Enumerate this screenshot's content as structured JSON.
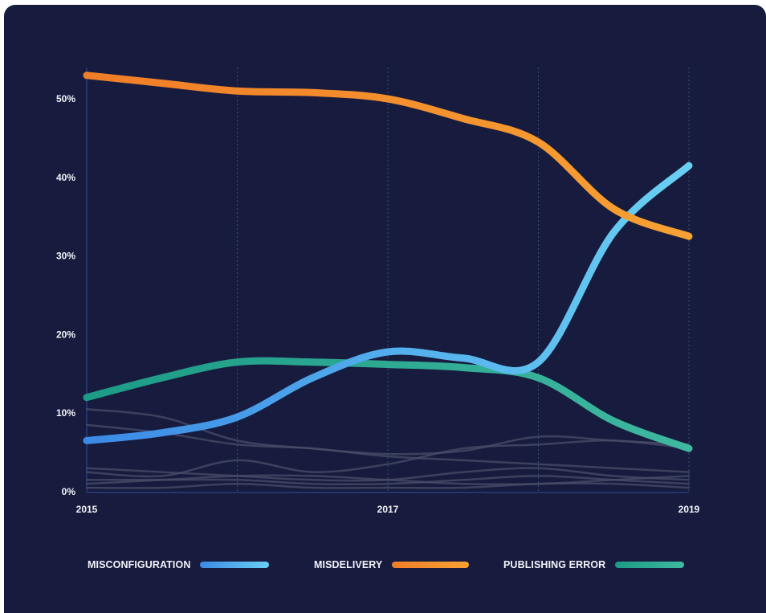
{
  "chart_data": {
    "type": "line",
    "title": "",
    "xlabel": "",
    "ylabel": "",
    "x": [
      2015,
      2015.5,
      2016,
      2016.5,
      2017,
      2017.5,
      2018,
      2018.5,
      2019
    ],
    "xlim": [
      2015,
      2019
    ],
    "ylim": [
      0,
      54
    ],
    "x_ticks": [
      "2015",
      "2017",
      "2019"
    ],
    "y_ticks": [
      "0%",
      "10%",
      "20%",
      "30%",
      "40%",
      "50%"
    ],
    "y_tick_values": [
      0,
      10,
      20,
      30,
      40,
      50
    ],
    "grid": "vertical dotted",
    "legend_position": "bottom",
    "series": [
      {
        "name": "MISCONFIGURATION",
        "values": [
          6.5,
          7.5,
          9.5,
          14.5,
          17.8,
          17,
          16.5,
          33,
          41.5
        ],
        "color_start": "#3b8ae6",
        "color_end": "#6ad0f2"
      },
      {
        "name": "MISDELIVERY",
        "values": [
          53,
          52,
          51,
          50.8,
          50,
          47.5,
          44.5,
          36,
          32.5
        ],
        "color_start": "#f07d28",
        "color_end": "#f7a133"
      },
      {
        "name": "PUBLISHING ERROR",
        "values": [
          12,
          14.5,
          16.5,
          16.5,
          16.2,
          15.8,
          14.5,
          9,
          5.5
        ],
        "color_start": "#1c9b86",
        "color_end": "#3fb8a0"
      }
    ],
    "background_series": [
      {
        "values": [
          10.5,
          9.5,
          6.5,
          5.5,
          4.8,
          5.2,
          7,
          6.5,
          6
        ]
      },
      {
        "values": [
          8.5,
          7.5,
          6,
          5.5,
          4.5,
          4,
          3.5,
          3,
          2.5
        ]
      },
      {
        "values": [
          3,
          2.5,
          2,
          1.5,
          1.5,
          2.5,
          3,
          2,
          1.5
        ]
      },
      {
        "values": [
          2.5,
          2,
          4,
          2.5,
          3.5,
          5.5,
          6,
          6.5,
          5.5
        ]
      },
      {
        "values": [
          1.5,
          1.5,
          1.5,
          1,
          1,
          1.5,
          2,
          1.5,
          1
        ]
      },
      {
        "values": [
          1,
          1.5,
          2,
          2,
          1.5,
          1,
          1,
          1.5,
          2
        ]
      },
      {
        "values": [
          0.5,
          0.5,
          1,
          0.5,
          0.5,
          0.5,
          1,
          1,
          0.5
        ]
      }
    ]
  },
  "colors": {
    "background": "#171c3e",
    "axis": "#2a3d7a",
    "grid": "#3a4a7e",
    "text": "#f2f3f8",
    "background_series": "#4a4e6a"
  }
}
